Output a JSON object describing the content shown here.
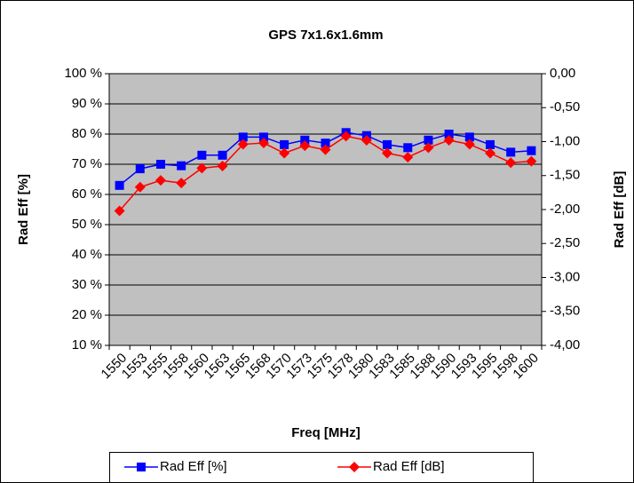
{
  "chart_data": {
    "type": "line",
    "title": "GPS 7x1.6x1.6mm",
    "x_label": "Freq [MHz]",
    "y_label": "Rad Eff [%]",
    "y2_label": "Rad Eff [dB]",
    "categories": [
      "1550",
      "1553",
      "1555",
      "1558",
      "1560",
      "1563",
      "1565",
      "1568",
      "1570",
      "1573",
      "1575",
      "1578",
      "1580",
      "1583",
      "1585",
      "1588",
      "1590",
      "1593",
      "1595",
      "1598",
      "1600"
    ],
    "series": [
      {
        "name": "Rad Eff [%]",
        "color": "#0000ff",
        "marker": "square",
        "values": [
          63,
          68.5,
          70,
          69.5,
          73,
          73,
          79,
          79,
          76.5,
          78,
          77,
          80.5,
          79.5,
          76.5,
          75.5,
          78,
          80,
          79,
          76.5,
          74,
          74.5
        ]
      },
      {
        "name": "Rad Eff [dB]",
        "color": "#ff0000",
        "marker": "diamond",
        "axis": "y2",
        "values": [
          -2.02,
          -1.67,
          -1.57,
          -1.61,
          -1.39,
          -1.36,
          -1.04,
          -1.02,
          -1.17,
          -1.06,
          -1.12,
          -0.92,
          -0.98,
          -1.17,
          -1.23,
          -1.09,
          -0.98,
          -1.04,
          -1.17,
          -1.31,
          -1.29
        ]
      }
    ],
    "ylim": [
      10,
      100
    ],
    "yticks": [
      {
        "value": 10,
        "label": "10 %"
      },
      {
        "value": 20,
        "label": "20 %"
      },
      {
        "value": 30,
        "label": "30 %"
      },
      {
        "value": 40,
        "label": "40 %"
      },
      {
        "value": 50,
        "label": "50 %"
      },
      {
        "value": 60,
        "label": "60 %"
      },
      {
        "value": 70,
        "label": "70 %"
      },
      {
        "value": 80,
        "label": "80 %"
      },
      {
        "value": 90,
        "label": "90 %"
      },
      {
        "value": 100,
        "label": "100 %"
      }
    ],
    "y2lim": [
      -4,
      0
    ],
    "y2ticks": [
      {
        "value": -4,
        "label": "-4,00"
      },
      {
        "value": -3.5,
        "label": "-3,50"
      },
      {
        "value": -3,
        "label": "-3,00"
      },
      {
        "value": -2.5,
        "label": "-2,50"
      },
      {
        "value": -2,
        "label": "-2,00"
      },
      {
        "value": -1.5,
        "label": "-1,50"
      },
      {
        "value": -1,
        "label": "-1,00"
      },
      {
        "value": -0.5,
        "label": "-0,50"
      },
      {
        "value": 0,
        "label": "0,00"
      }
    ],
    "grid": true,
    "legend": "bottom",
    "plot_background": "#c0c0c0"
  }
}
